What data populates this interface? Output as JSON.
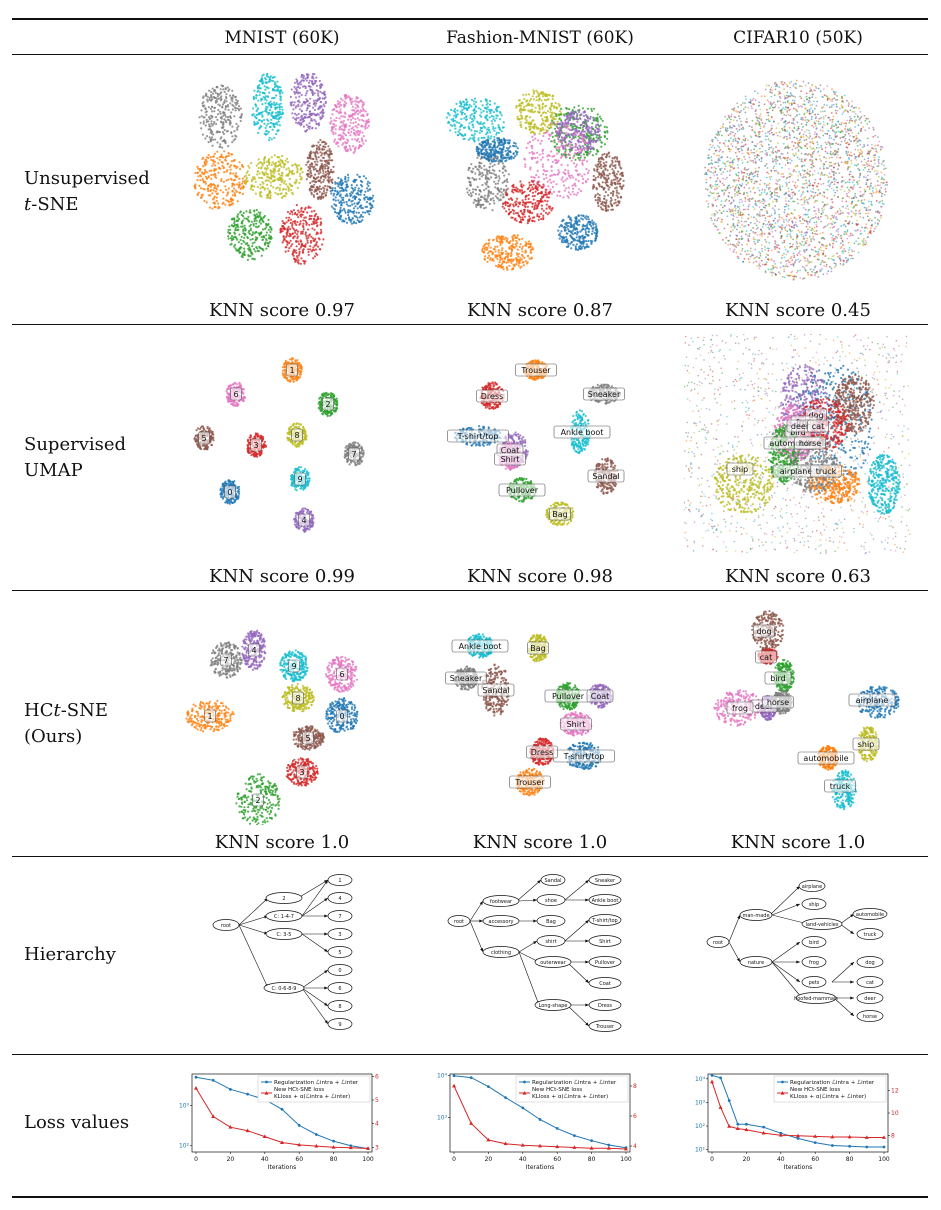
{
  "columns": [
    "MNIST (60K)",
    "Fashion-MNIST (60K)",
    "CIFAR10 (50K)"
  ],
  "rows": {
    "unsup": {
      "label1": "Unsupervised",
      "label2_italic": "t",
      "label2_rest": "-SNE",
      "knn": [
        "KNN score 0.97",
        "KNN score 0.87",
        "KNN score 0.45"
      ]
    },
    "sup": {
      "label1": "Supervised",
      "label2": "UMAP",
      "knn": [
        "KNN score 0.99",
        "KNN score 0.98",
        "KNN score 0.63"
      ]
    },
    "hct": {
      "label1_pre": "HC",
      "label1_italic": "t",
      "label1_post": "-SNE",
      "label2": "(Ours)",
      "knn": [
        "KNN score 1.0",
        "KNN score 1.0",
        "KNN score 1.0"
      ]
    },
    "hier": {
      "label": "Hierarchy"
    },
    "loss": {
      "label": "Loss values"
    }
  },
  "palette": [
    "#1f77b4",
    "#ff7f0e",
    "#2ca02c",
    "#d62728",
    "#9467bd",
    "#8c564b",
    "#e377c2",
    "#7f7f7f",
    "#bcbd22",
    "#17becf"
  ],
  "sup_labels": {
    "mnist": [
      "0",
      "1",
      "2",
      "3",
      "4",
      "5",
      "6",
      "7",
      "8",
      "9"
    ],
    "fashion": [
      "T-shirt/top",
      "Trouser",
      "Pullover",
      "Dress",
      "Coat",
      "Sandal",
      "Shirt",
      "Sneaker",
      "Bag",
      "Ankle boot"
    ],
    "cifar": [
      "airplane",
      "automobile",
      "bird",
      "cat",
      "deer",
      "dog",
      "frog",
      "horse",
      "ship",
      "truck"
    ]
  },
  "hierarchy": {
    "mnist": {
      "root": "root",
      "mid": [
        "2",
        "C: 1-4-7",
        "C: 3-5",
        "C: 0-6-8-9"
      ],
      "leaves": [
        "1",
        "4",
        "7",
        "3",
        "5",
        "0",
        "6",
        "8",
        "9"
      ]
    },
    "fashion": {
      "root": "root",
      "mid": [
        "footwear",
        "accessory",
        "clothing"
      ],
      "sub": [
        "shoe",
        "Bag",
        "shirt",
        "outerwear",
        "Long-shape"
      ],
      "leaves": [
        "Sandal",
        "Sneaker",
        "Ankle boot",
        "T-shirt/top",
        "Shirt",
        "Pullover",
        "Coat",
        "Dress",
        "Trouser"
      ]
    },
    "cifar": {
      "root": "root",
      "mid": [
        "man-made",
        "nature"
      ],
      "sub": [
        "ship",
        "land-vehicles",
        "bird",
        "frog",
        "pets",
        "hoofed-mammals"
      ],
      "leaves": [
        "airplane",
        "automobile",
        "truck",
        "dog",
        "cat",
        "deer",
        "horse"
      ]
    }
  },
  "chart_data": [
    {
      "type": "line",
      "xlabel": "Iterations",
      "x": [
        0,
        10,
        20,
        30,
        40,
        50,
        60,
        70,
        80,
        90,
        100
      ],
      "yscale_left": "log",
      "ylim_left": [
        70,
        6000
      ],
      "ylim_right": [
        2.8,
        6.1
      ],
      "left_ticks": [
        "10²",
        "10³"
      ],
      "right_ticks": [
        "3",
        "4",
        "5",
        "6"
      ],
      "series": [
        {
          "name": "Regularization ℒintra + ℒinter",
          "color": "#1f77b4",
          "axis": "left",
          "values": [
            5000,
            4200,
            2500,
            1900,
            1400,
            800,
            320,
            190,
            130,
            100,
            85
          ]
        },
        {
          "name": "New HCt-SNE loss KLloss + α(ℒintra + ℒinter)",
          "color": "#d62728",
          "axis": "right",
          "values": [
            5.5,
            4.3,
            3.85,
            3.7,
            3.45,
            3.2,
            3.1,
            3.05,
            3.0,
            2.98,
            2.95
          ]
        }
      ],
      "x_ticks": [
        "0",
        "20",
        "40",
        "60",
        "80",
        "100"
      ]
    },
    {
      "type": "line",
      "xlabel": "Iterations",
      "x": [
        0,
        10,
        20,
        30,
        40,
        50,
        60,
        70,
        80,
        90,
        100
      ],
      "yscale_left": "log",
      "ylim_left": [
        150,
        11000
      ],
      "ylim_right": [
        3.6,
        8.8
      ],
      "left_ticks": [
        "10³",
        "10⁴"
      ],
      "right_ticks": [
        "4",
        "6",
        "8"
      ],
      "series": [
        {
          "name": "Regularization ℒintra + ℒinter",
          "color": "#1f77b4",
          "axis": "left",
          "values": [
            10000,
            9000,
            5500,
            3000,
            1700,
            900,
            550,
            370,
            280,
            220,
            190
          ]
        },
        {
          "name": "New HCt-SNE loss KLloss + α(ℒintra + ℒinter)",
          "color": "#d62728",
          "axis": "right",
          "values": [
            8.0,
            5.5,
            4.4,
            4.15,
            4.05,
            4.0,
            3.95,
            3.9,
            3.85,
            3.85,
            3.8
          ]
        }
      ],
      "x_ticks": [
        "0",
        "20",
        "40",
        "60",
        "80",
        "100"
      ]
    },
    {
      "type": "line",
      "xlabel": "Iterations",
      "x": [
        0,
        5,
        10,
        15,
        20,
        30,
        40,
        50,
        60,
        70,
        80,
        90,
        100
      ],
      "yscale_left": "log",
      "ylim_left": [
        8,
        16000
      ],
      "ylim_right": [
        6.5,
        13.5
      ],
      "left_ticks": [
        "10¹",
        "10²",
        "10³",
        "10⁴"
      ],
      "right_ticks": [
        "8",
        "10",
        "12"
      ],
      "series": [
        {
          "name": "Regularization ℒintra + ℒinter",
          "color": "#1f77b4",
          "axis": "left",
          "values": [
            14000,
            11000,
            1200,
            120,
            120,
            90,
            50,
            30,
            20,
            15,
            14,
            13,
            13
          ]
        },
        {
          "name": "New HCt-SNE loss KLloss + α(ℒintra + ℒinter)",
          "color": "#d62728",
          "axis": "right",
          "values": [
            12.8,
            10.5,
            8.8,
            8.6,
            8.5,
            8.2,
            8.0,
            7.95,
            7.9,
            7.85,
            7.85,
            7.8,
            7.8
          ]
        }
      ],
      "x_ticks": [
        "0",
        "20",
        "40",
        "60",
        "80",
        "100"
      ]
    }
  ]
}
